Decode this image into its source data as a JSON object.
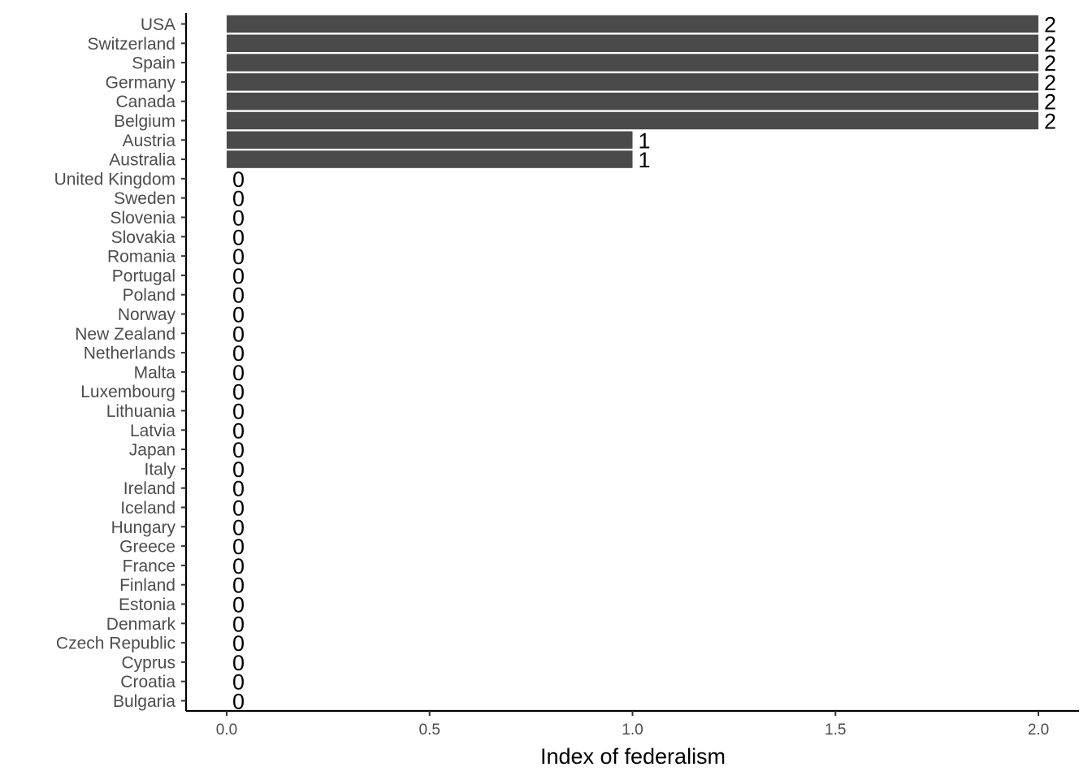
{
  "chart_data": {
    "type": "bar",
    "orientation": "horizontal",
    "xlabel": "Index of federalism",
    "ylabel": "",
    "xlim": [
      -0.1,
      2.1
    ],
    "x_ticks": [
      0.0,
      0.5,
      1.0,
      1.5,
      2.0
    ],
    "x_tick_labels": [
      "0.0",
      "0.5",
      "1.0",
      "1.5",
      "2.0"
    ],
    "grid": false,
    "bar_color": "#4a4a4a",
    "categories": [
      "USA",
      "Switzerland",
      "Spain",
      "Germany",
      "Canada",
      "Belgium",
      "Austria",
      "Australia",
      "United Kingdom",
      "Sweden",
      "Slovenia",
      "Slovakia",
      "Romania",
      "Portugal",
      "Poland",
      "Norway",
      "New Zealand",
      "Netherlands",
      "Malta",
      "Luxembourg",
      "Lithuania",
      "Latvia",
      "Japan",
      "Italy",
      "Ireland",
      "Iceland",
      "Hungary",
      "Greece",
      "France",
      "Finland",
      "Estonia",
      "Denmark",
      "Czech Republic",
      "Cyprus",
      "Croatia",
      "Bulgaria"
    ],
    "values": [
      2,
      2,
      2,
      2,
      2,
      2,
      1,
      1,
      0,
      0,
      0,
      0,
      0,
      0,
      0,
      0,
      0,
      0,
      0,
      0,
      0,
      0,
      0,
      0,
      0,
      0,
      0,
      0,
      0,
      0,
      0,
      0,
      0,
      0,
      0,
      0
    ],
    "value_labels": [
      "2",
      "2",
      "2",
      "2",
      "2",
      "2",
      "1",
      "1",
      "0",
      "0",
      "0",
      "0",
      "0",
      "0",
      "0",
      "0",
      "0",
      "0",
      "0",
      "0",
      "0",
      "0",
      "0",
      "0",
      "0",
      "0",
      "0",
      "0",
      "0",
      "0",
      "0",
      "0",
      "0",
      "0",
      "0",
      "0"
    ]
  }
}
